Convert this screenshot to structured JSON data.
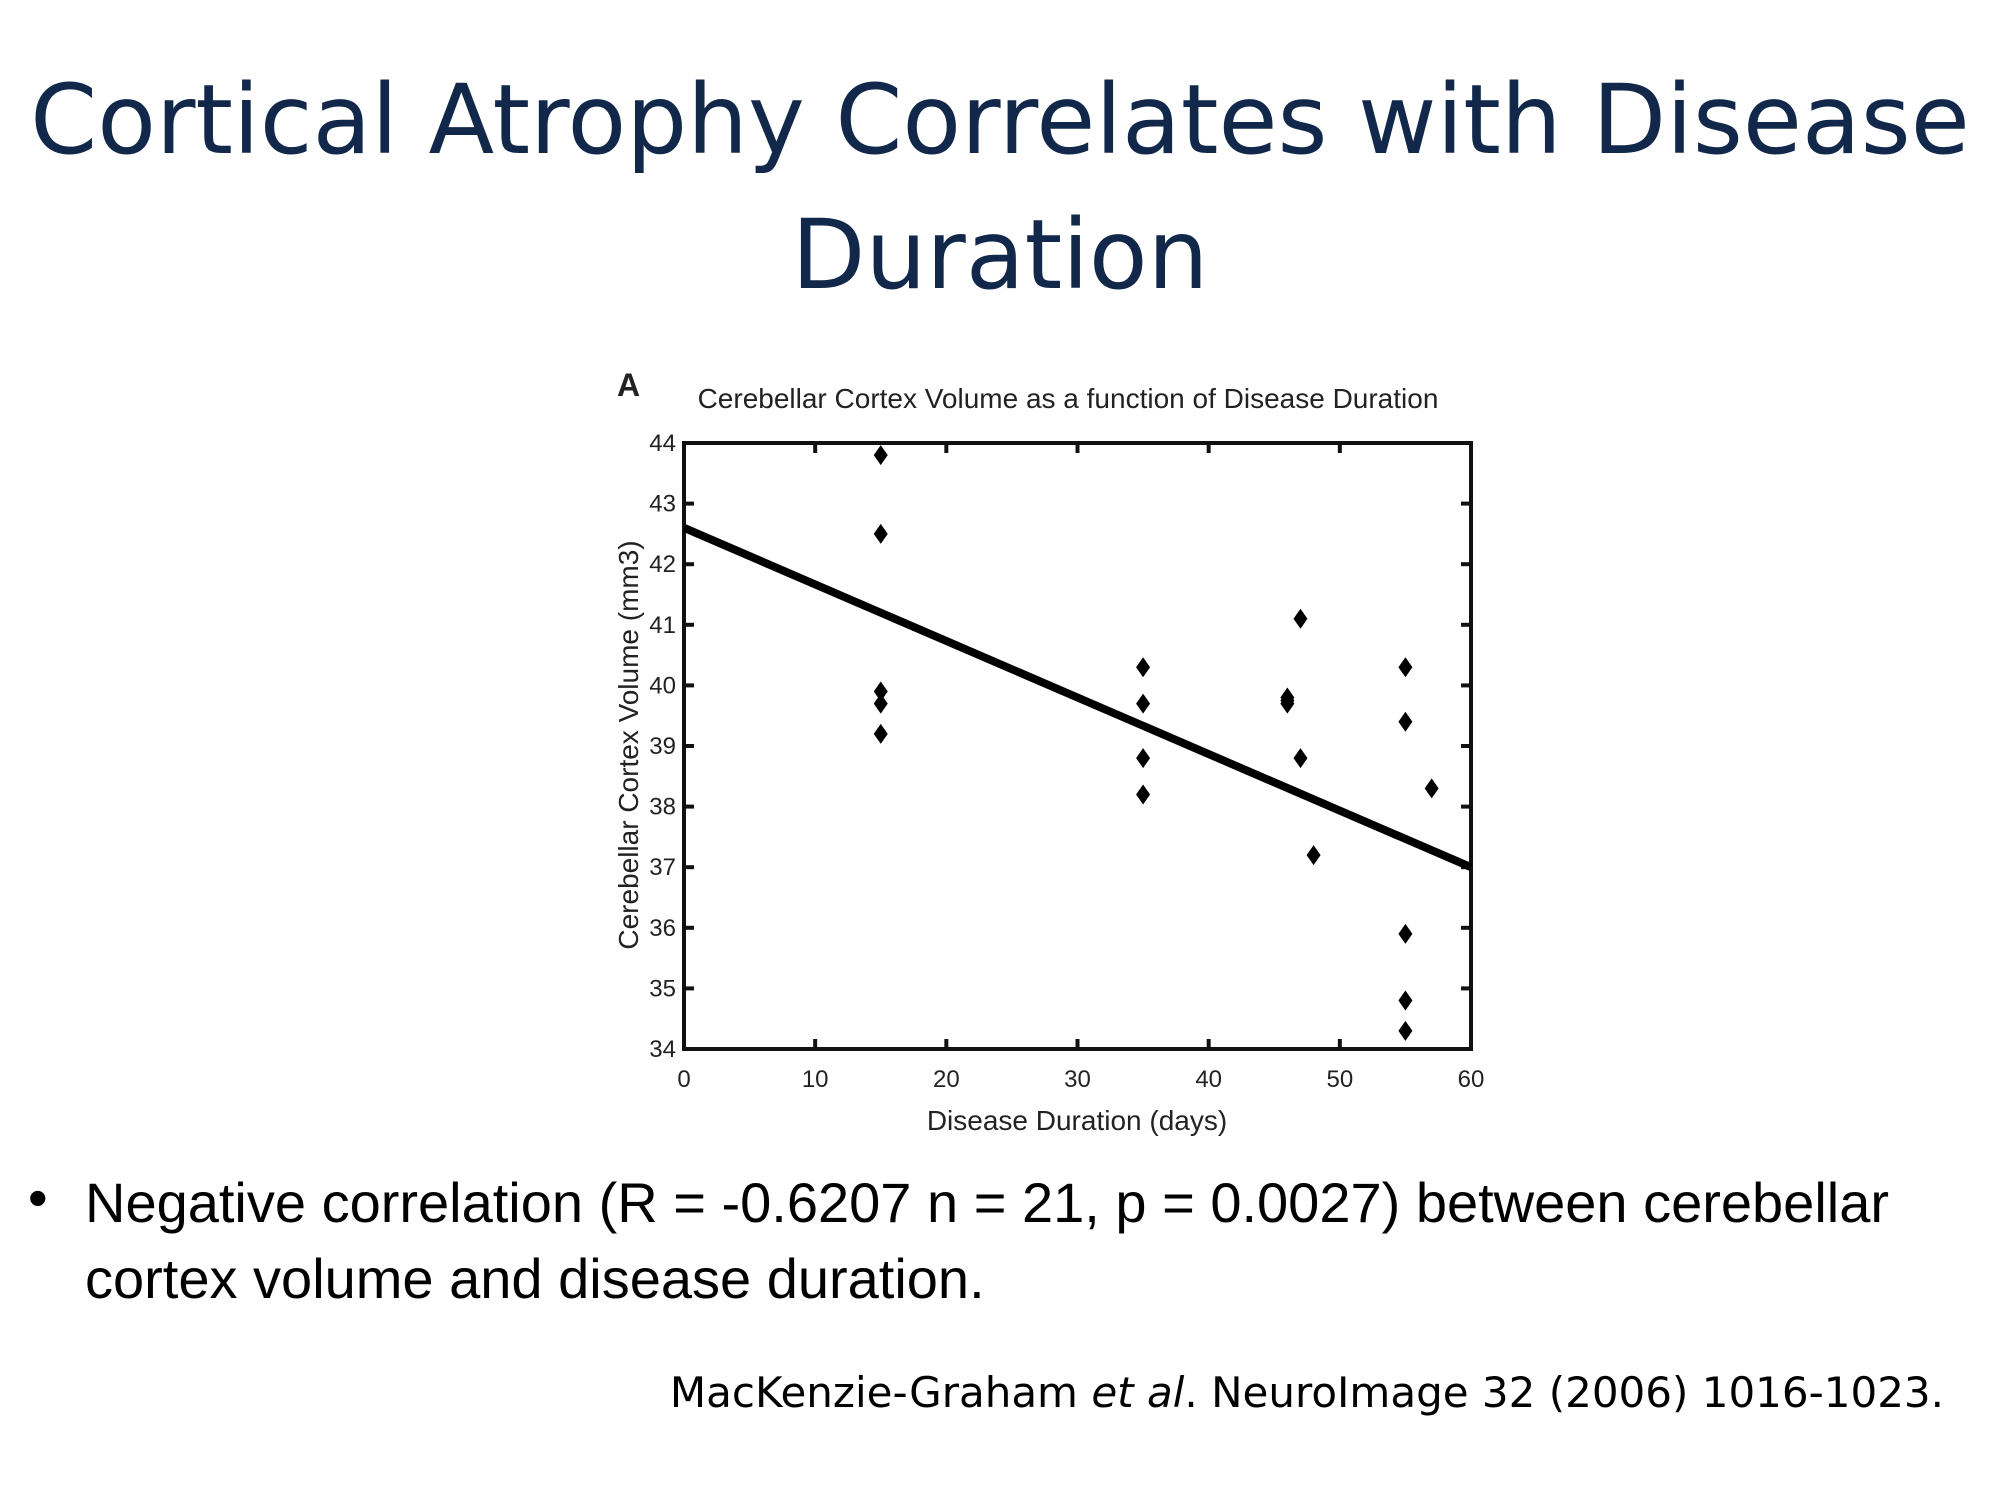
{
  "slide": {
    "title_line1": "Cortical Atrophy Correlates with Disease",
    "title_line2": "Duration",
    "bullet_symbol": "•",
    "bullet_text": "Negative correlation (R = -0.6207 n = 21, p = 0.0027) between cerebellar cortex volume and disease duration.",
    "citation_authors": "MacKenzie-Graham ",
    "citation_etal": "et al",
    "citation_rest": ". NeuroImage 32 (2006) 1016-1023.",
    "title_color": "#11284a"
  },
  "chart_data": {
    "type": "scatter",
    "panel_label": "A",
    "title": "Cerebellar Cortex Volume as a function of Disease Duration",
    "xlabel": "Disease Duration (days)",
    "ylabel": "Cerebellar Cortex Volume (mm3)",
    "xlim": [
      0,
      60
    ],
    "ylim": [
      34,
      44
    ],
    "xticks": [
      "0",
      "10",
      "20",
      "30",
      "40",
      "50",
      "60"
    ],
    "yticks": [
      "34",
      "35",
      "36",
      "37",
      "38",
      "39",
      "40",
      "41",
      "42",
      "43",
      "44"
    ],
    "grid": false,
    "points": [
      [
        15,
        43.8
      ],
      [
        15,
        42.5
      ],
      [
        15,
        39.9
      ],
      [
        15,
        39.7
      ],
      [
        15,
        39.2
      ],
      [
        35,
        40.3
      ],
      [
        35,
        39.7
      ],
      [
        35,
        38.8
      ],
      [
        35,
        38.2
      ],
      [
        46,
        39.8
      ],
      [
        46,
        39.75
      ],
      [
        46,
        39.7
      ],
      [
        47,
        41.1
      ],
      [
        47,
        38.8
      ],
      [
        48,
        37.2
      ],
      [
        55,
        40.3
      ],
      [
        55,
        39.4
      ],
      [
        55,
        35.9
      ],
      [
        55,
        34.8
      ],
      [
        55,
        34.3
      ],
      [
        57,
        38.3
      ]
    ],
    "fit_line": {
      "x": [
        0,
        60
      ],
      "y": [
        42.6,
        37.0
      ]
    }
  }
}
